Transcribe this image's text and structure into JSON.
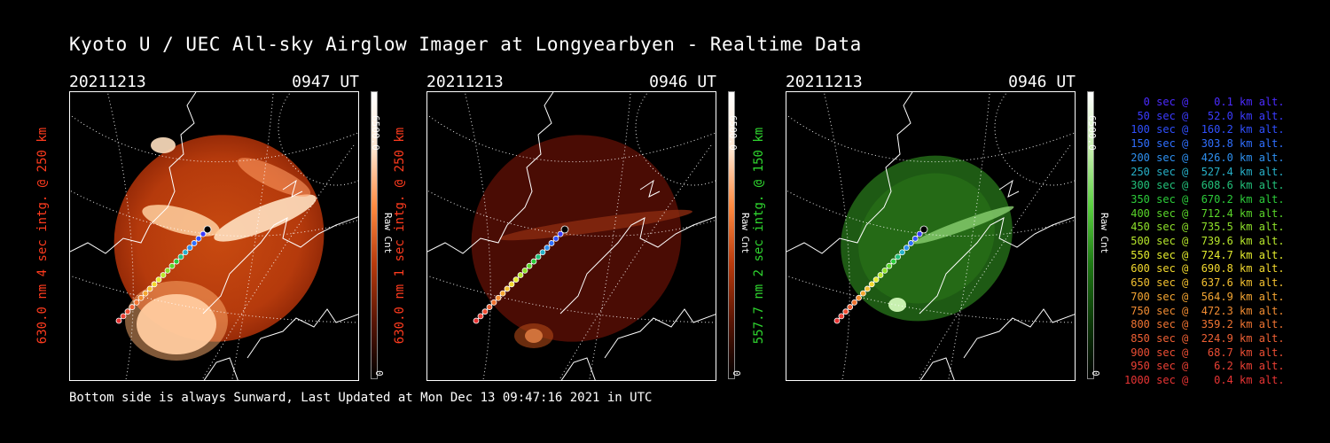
{
  "title": "Kyoto U / UEC All-sky Airglow Imager at Longyearbyen - Realtime Data",
  "footer": "Bottom side is always Sunward, Last Updated at Mon Dec 13 09:47:16 2021 in UTC",
  "panels": [
    {
      "date": "20211213",
      "time": "0947 UT",
      "ylabel": "630.0 nm 4 sec intg. @ 250 km",
      "cmax": "6500.0",
      "cmin": "0",
      "cunit": "Raw Cnt",
      "color": "#ff3b1e"
    },
    {
      "date": "20211213",
      "time": "0946 UT",
      "ylabel": "630.0 nm 1 sec intg. @ 250 km",
      "cmax": "6500.0",
      "cmin": "0",
      "cunit": "Raw Cnt",
      "color": "#ff3b1e"
    },
    {
      "date": "20211213",
      "time": "0946 UT",
      "ylabel": "557.7 nm 2 sec intg. @ 150 km",
      "cmax": "6500.0",
      "cmin": "0",
      "cunit": "Raw Cnt",
      "color": "#2fd62f"
    }
  ],
  "legend": [
    {
      "text": "   0 sec @    0.1 km alt.",
      "color": "#4b2bff"
    },
    {
      "text": "  50 sec @   52.0 km alt.",
      "color": "#3b3bff"
    },
    {
      "text": " 100 sec @  160.2 km alt.",
      "color": "#3050ff"
    },
    {
      "text": " 150 sec @  303.8 km alt.",
      "color": "#2f6fff"
    },
    {
      "text": " 200 sec @  426.0 km alt.",
      "color": "#2e90f0"
    },
    {
      "text": " 250 sec @  527.4 km alt.",
      "color": "#27b0c8"
    },
    {
      "text": " 300 sec @  608.6 km alt.",
      "color": "#22c07a"
    },
    {
      "text": " 350 sec @  670.2 km alt.",
      "color": "#2ccc3a"
    },
    {
      "text": " 400 sec @  712.4 km alt.",
      "color": "#5ad62a"
    },
    {
      "text": " 450 sec @  735.5 km alt.",
      "color": "#8ee02a"
    },
    {
      "text": " 500 sec @  739.6 km alt.",
      "color": "#b8e82c"
    },
    {
      "text": " 550 sec @  724.7 km alt.",
      "color": "#e4ec2e"
    },
    {
      "text": " 600 sec @  690.8 km alt.",
      "color": "#f2d82e"
    },
    {
      "text": " 650 sec @  637.6 km alt.",
      "color": "#f3c030"
    },
    {
      "text": " 700 sec @  564.9 km alt.",
      "color": "#f4a632"
    },
    {
      "text": " 750 sec @  472.3 km alt.",
      "color": "#f28c32"
    },
    {
      "text": " 800 sec @  359.2 km alt.",
      "color": "#f07432"
    },
    {
      "text": " 850 sec @  224.9 km alt.",
      "color": "#ee6034"
    },
    {
      "text": " 900 sec @   68.7 km alt.",
      "color": "#ec4e34"
    },
    {
      "text": " 950 sec @    6.2 km alt.",
      "color": "#ea4034"
    },
    {
      "text": "1000 sec @    0.4 km alt.",
      "color": "#e83434"
    }
  ]
}
